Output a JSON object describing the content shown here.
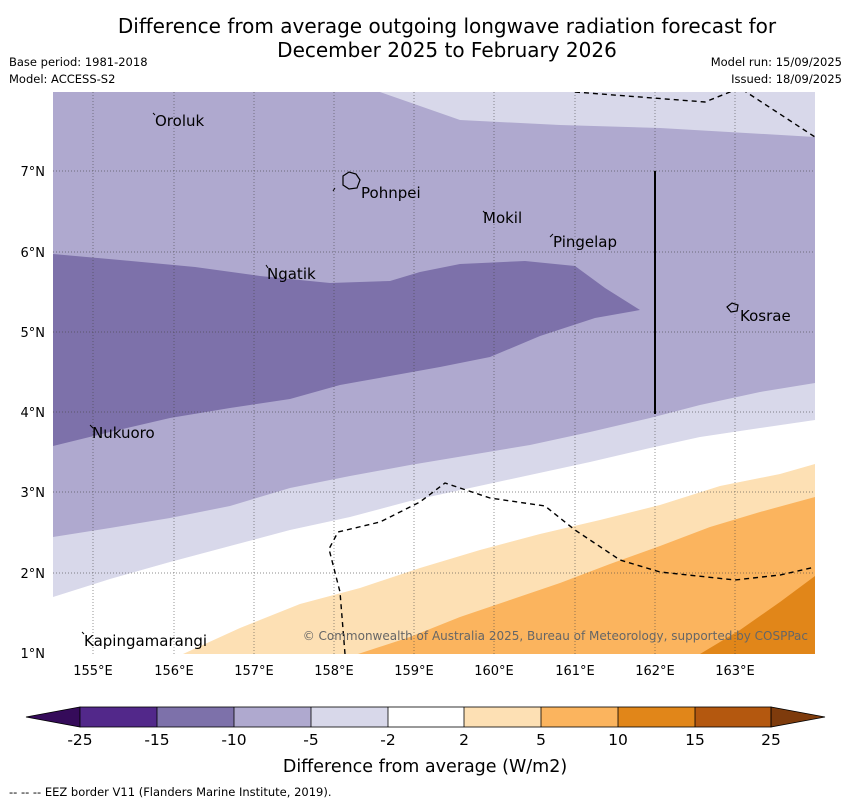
{
  "title": "Difference from average outgoing longwave radiation forecast for December 2025 to February 2026",
  "title_line1": "Difference from average outgoing longwave radiation forecast for",
  "title_line2": "December 2025 to February 2026",
  "info_left": [
    "Base period: 1981-2018",
    "Model: ACCESS-S2"
  ],
  "info_right": [
    "Model run: 15/09/2025",
    "Issued: 18/09/2025"
  ],
  "map": {
    "x_ticks": [
      "155°E",
      "156°E",
      "157°E",
      "158°E",
      "159°E",
      "160°E",
      "161°E",
      "162°E",
      "163°E"
    ],
    "y_ticks": [
      "7°N",
      "6°N",
      "5°N",
      "4°N",
      "3°N",
      "2°N",
      "1°N"
    ],
    "places": [
      {
        "name": "Oroluk",
        "lon": 154.77,
        "lat": 7.65
      },
      {
        "name": "Pohnpei",
        "lon": 158.33,
        "lat": 6.82
      },
      {
        "name": "Mokil",
        "lon": 159.78,
        "lat": 6.4
      },
      {
        "name": "Pingelap",
        "lon": 160.72,
        "lat": 6.15
      },
      {
        "name": "Ngatik",
        "lon": 157.17,
        "lat": 5.75
      },
      {
        "name": "Kosrae",
        "lon": 162.98,
        "lat": 5.28
      },
      {
        "name": "Nukuoro",
        "lon": 154.97,
        "lat": 3.78
      },
      {
        "name": "Kapingamarangi",
        "lon": 154.78,
        "lat": 1.22
      }
    ],
    "copyright": "© Commonwealth of Australia 2025, Bureau of Meteorology, supported by COSPPac"
  },
  "colorbar": {
    "label": "Difference from average (W/m2)",
    "ticks": [
      "-25",
      "-15",
      "-10",
      "-5",
      "-2",
      "2",
      "5",
      "10",
      "15",
      "25"
    ],
    "colors": [
      "#52288a",
      "#7d71aa",
      "#afa9cf",
      "#d8d8ea",
      "#ffffff",
      "#fde0b4",
      "#fbb45e",
      "#e18619",
      "#b4580f"
    ],
    "extend_low_color": "#350b5a",
    "extend_high_color": "#7e3b0c"
  },
  "footnote": "-- -- -- EEZ border V11 (Flanders Marine Institute, 2019)."
}
